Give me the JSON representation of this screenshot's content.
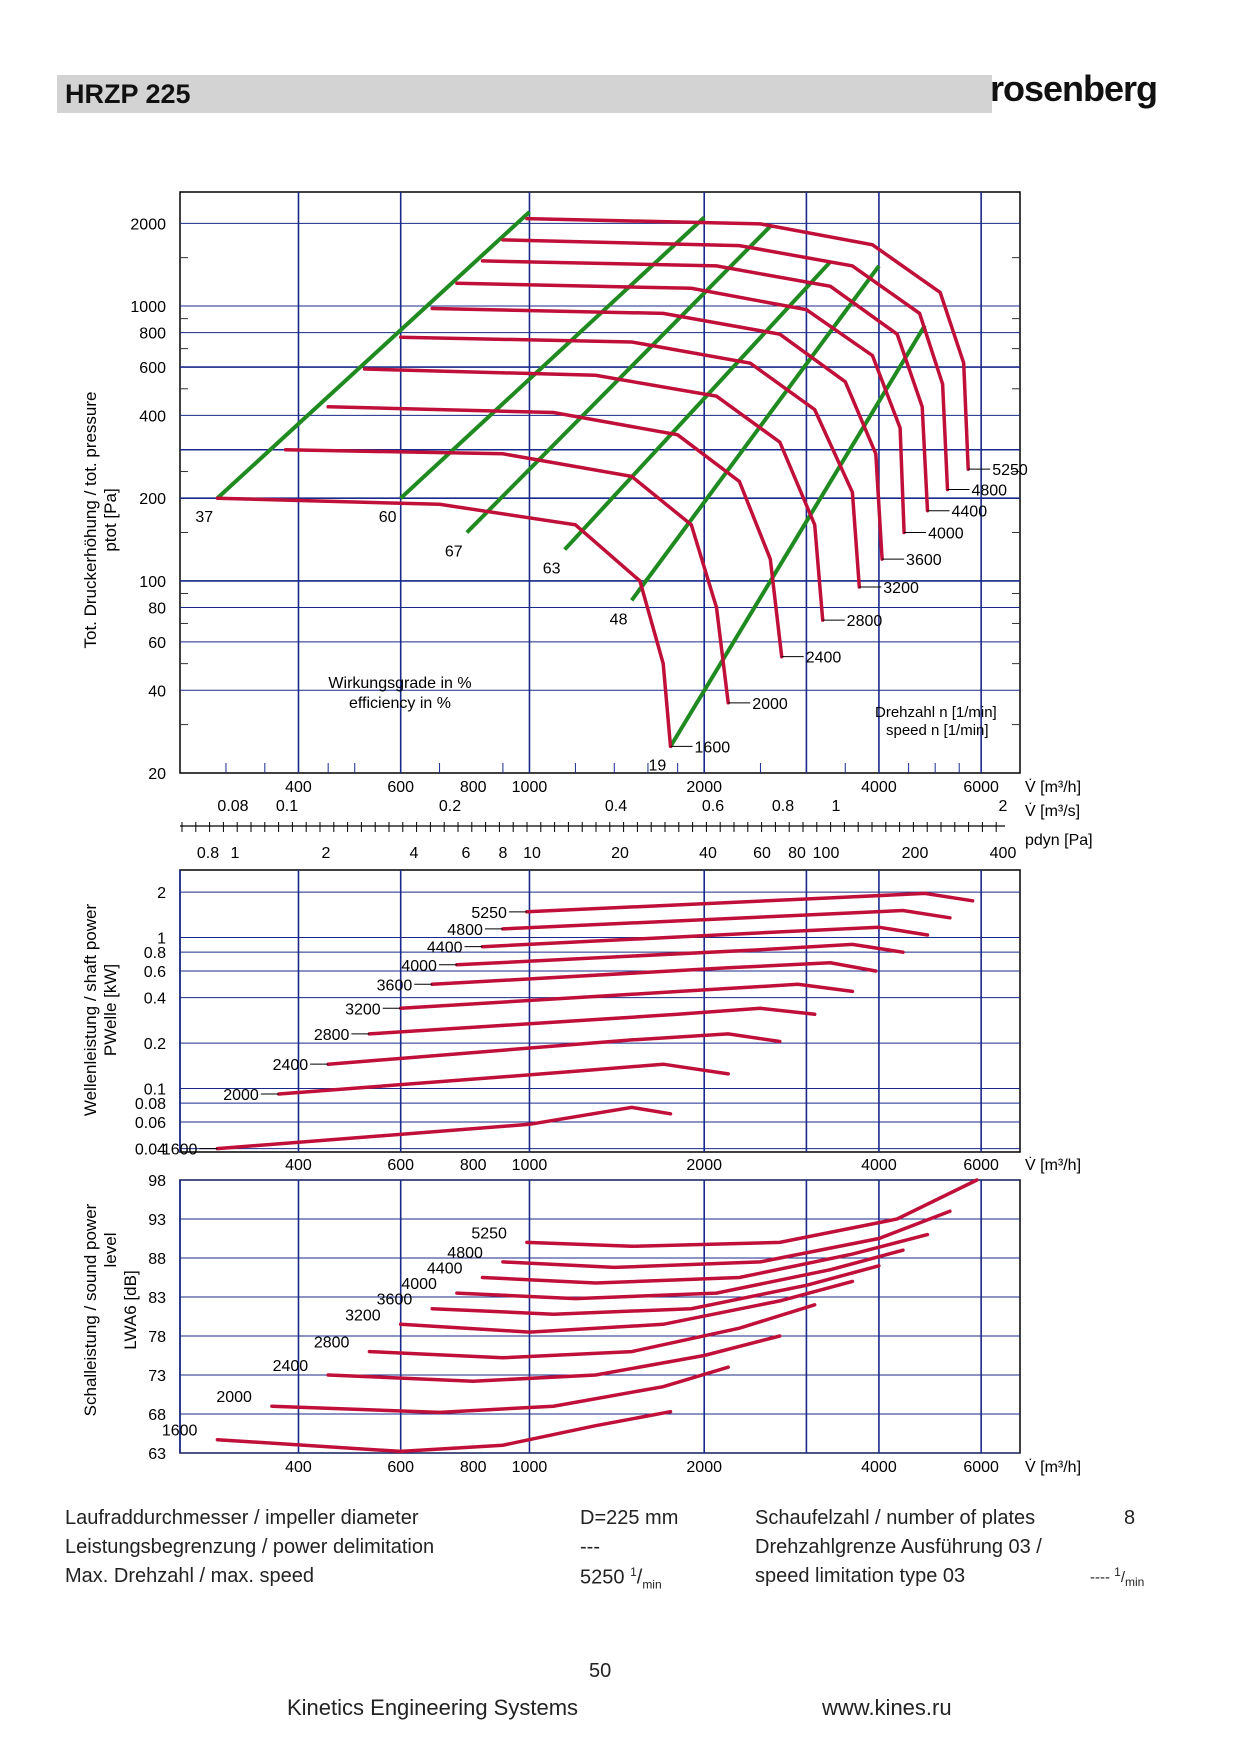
{
  "header": {
    "title": "HRZP 225",
    "brand": "rosenberg"
  },
  "chart_data": [
    {
      "type": "line",
      "name": "pressure",
      "ylabel_1": "Tot. Druckerhöhung / tot. pressure",
      "ylabel_2": "p",
      "ylabel_sub": "tot",
      "ylabel_unit": " [Pa]",
      "xscale": "log",
      "yscale": "log",
      "xlim": [
        250,
        7000
      ],
      "ylim": [
        20,
        2600
      ],
      "y_ticks": [
        2000,
        1000,
        800,
        600,
        400,
        200,
        100,
        80,
        60,
        40,
        20
      ],
      "x_ticks": [
        400,
        600,
        800,
        1000,
        2000,
        4000,
        6000
      ],
      "x2_ticks": [
        "0.08",
        "0.1",
        "0.2",
        "0.4",
        "0.6",
        "0.8",
        "1",
        "2"
      ],
      "x3_ticks": [
        "0.8",
        "1",
        "2",
        "4",
        "6",
        "8",
        "10",
        "20",
        "40",
        "60",
        "80",
        "100",
        "200",
        "400"
      ],
      "xlabel": "V̇ [m³/h]",
      "x2label": "V̇ [m³/s]",
      "x3label": "p",
      "x3label_sub": "dyn",
      "x3label_unit": " [Pa]",
      "efficiency_label_1": "Wirkungsgrade in %",
      "efficiency_label_2": "efficiency in %",
      "speed_label_1": "Drehzahl n [",
      "speed_label_2": "speed n [",
      "speed_unit_num": "1",
      "speed_unit_den": "min",
      "efficiency_lines": [
        {
          "label": "37",
          "points": [
            [
              290,
              200
            ],
            [
              1000,
              2200
            ]
          ]
        },
        {
          "label": "60",
          "points": [
            [
              600,
              200
            ],
            [
              2000,
              2100
            ]
          ]
        },
        {
          "label": "67",
          "points": [
            [
              780,
              150
            ],
            [
              2600,
              1950
            ]
          ]
        },
        {
          "label": "63",
          "points": [
            [
              1150,
              130
            ],
            [
              3300,
              1450
            ]
          ]
        },
        {
          "label": "48",
          "points": [
            [
              1500,
              85
            ],
            [
              4000,
              1400
            ]
          ]
        },
        {
          "label": "19",
          "points": [
            [
              1750,
              25
            ],
            [
              4800,
              850
            ]
          ]
        }
      ],
      "series": [
        {
          "name": "1600",
          "points": [
            [
              290,
              200
            ],
            [
              700,
              190
            ],
            [
              1200,
              160
            ],
            [
              1550,
              100
            ],
            [
              1700,
              50
            ],
            [
              1750,
              25
            ]
          ]
        },
        {
          "name": "2000",
          "points": [
            [
              380,
              300
            ],
            [
              900,
              290
            ],
            [
              1500,
              240
            ],
            [
              1900,
              160
            ],
            [
              2100,
              80
            ],
            [
              2200,
              36
            ]
          ]
        },
        {
          "name": "2400",
          "points": [
            [
              450,
              430
            ],
            [
              1100,
              410
            ],
            [
              1800,
              340
            ],
            [
              2300,
              230
            ],
            [
              2600,
              120
            ],
            [
              2720,
              53
            ]
          ]
        },
        {
          "name": "2800",
          "points": [
            [
              520,
              590
            ],
            [
              1300,
              560
            ],
            [
              2100,
              470
            ],
            [
              2700,
              320
            ],
            [
              3100,
              160
            ],
            [
              3200,
              72
            ]
          ]
        },
        {
          "name": "3200",
          "points": [
            [
              600,
              770
            ],
            [
              1500,
              740
            ],
            [
              2400,
              620
            ],
            [
              3100,
              420
            ],
            [
              3600,
              210
            ],
            [
              3700,
              95
            ]
          ]
        },
        {
          "name": "3600",
          "points": [
            [
              680,
              980
            ],
            [
              1700,
              940
            ],
            [
              2700,
              790
            ],
            [
              3500,
              530
            ],
            [
              3950,
              290
            ],
            [
              4050,
              120
            ]
          ]
        },
        {
          "name": "4000",
          "points": [
            [
              750,
              1210
            ],
            [
              1900,
              1160
            ],
            [
              3000,
              970
            ],
            [
              3900,
              660
            ],
            [
              4350,
              360
            ],
            [
              4420,
              150
            ]
          ]
        },
        {
          "name": "4400",
          "points": [
            [
              830,
              1460
            ],
            [
              2100,
              1400
            ],
            [
              3300,
              1180
            ],
            [
              4300,
              790
            ],
            [
              4750,
              430
            ],
            [
              4850,
              180
            ]
          ]
        },
        {
          "name": "4800",
          "points": [
            [
              900,
              1740
            ],
            [
              2300,
              1660
            ],
            [
              3600,
              1400
            ],
            [
              4700,
              940
            ],
            [
              5150,
              520
            ],
            [
              5250,
              215
            ]
          ]
        },
        {
          "name": "5250",
          "points": [
            [
              990,
              2080
            ],
            [
              2500,
              1990
            ],
            [
              3900,
              1670
            ],
            [
              5100,
              1120
            ],
            [
              5600,
              620
            ],
            [
              5700,
              255
            ]
          ]
        }
      ]
    },
    {
      "type": "line",
      "name": "power",
      "ylabel_1": "Wellenleistung / shaft power",
      "ylabel_2": "P",
      "ylabel_sub": "Welle",
      "ylabel_unit": " [kW]",
      "xscale": "log",
      "yscale": "log",
      "y_ticks": [
        "2",
        "1",
        "0.8",
        "0.6",
        "0.4",
        "0.2",
        "0.1",
        "0.08",
        "0.06",
        "0.04"
      ],
      "x_ticks": [
        400,
        600,
        800,
        1000,
        2000,
        4000,
        6000
      ],
      "xlabel": "V̇ [m³/h]",
      "series": [
        {
          "name": "1600",
          "points": [
            [
              290,
              0.04
            ],
            [
              1000,
              0.058
            ],
            [
              1500,
              0.075
            ],
            [
              1750,
              0.068
            ]
          ]
        },
        {
          "name": "2000",
          "points": [
            [
              370,
              0.092
            ],
            [
              1200,
              0.13
            ],
            [
              1700,
              0.145
            ],
            [
              2200,
              0.125
            ]
          ]
        },
        {
          "name": "2400",
          "points": [
            [
              450,
              0.145
            ],
            [
              1500,
              0.21
            ],
            [
              2200,
              0.23
            ],
            [
              2700,
              0.205
            ]
          ]
        },
        {
          "name": "2800",
          "points": [
            [
              530,
              0.23
            ],
            [
              1800,
              0.31
            ],
            [
              2500,
              0.34
            ],
            [
              3100,
              0.31
            ]
          ]
        },
        {
          "name": "3200",
          "points": [
            [
              600,
              0.34
            ],
            [
              2000,
              0.45
            ],
            [
              2900,
              0.49
            ],
            [
              3600,
              0.44
            ]
          ]
        },
        {
          "name": "3600",
          "points": [
            [
              680,
              0.49
            ],
            [
              2200,
              0.63
            ],
            [
              3300,
              0.68
            ],
            [
              3950,
              0.6
            ]
          ]
        },
        {
          "name": "4000",
          "points": [
            [
              750,
              0.66
            ],
            [
              2500,
              0.83
            ],
            [
              3600,
              0.9
            ],
            [
              4400,
              0.8
            ]
          ]
        },
        {
          "name": "4400",
          "points": [
            [
              830,
              0.87
            ],
            [
              2700,
              1.09
            ],
            [
              4000,
              1.17
            ],
            [
              4850,
              1.04
            ]
          ]
        },
        {
          "name": "4800",
          "points": [
            [
              900,
              1.14
            ],
            [
              3000,
              1.41
            ],
            [
              4400,
              1.51
            ],
            [
              5300,
              1.35
            ]
          ]
        },
        {
          "name": "5250",
          "points": [
            [
              990,
              1.48
            ],
            [
              3300,
              1.83
            ],
            [
              4800,
              1.96
            ],
            [
              5800,
              1.75
            ]
          ]
        }
      ]
    },
    {
      "type": "line",
      "name": "sound",
      "ylabel_1": "Schalleistung / sound power",
      "ylabel_1b": "level",
      "ylabel_2": "L",
      "ylabel_sub": "WA6",
      "ylabel_unit": " [dB]",
      "xscale": "log",
      "y_ticks": [
        "98",
        "93",
        "88",
        "83",
        "78",
        "73",
        "68",
        "63"
      ],
      "x_ticks": [
        400,
        600,
        800,
        1000,
        2000,
        4000,
        6000
      ],
      "xlabel": "V̇ [m³/h]",
      "series": [
        {
          "name": "1600",
          "points": [
            [
              290,
              64.7
            ],
            [
              600,
              63.2
            ],
            [
              900,
              64
            ],
            [
              1300,
              66.5
            ],
            [
              1750,
              68.3
            ]
          ]
        },
        {
          "name": "2000",
          "points": [
            [
              360,
              69
            ],
            [
              700,
              68.2
            ],
            [
              1100,
              69
            ],
            [
              1700,
              71.5
            ],
            [
              2200,
              74
            ]
          ]
        },
        {
          "name": "2400",
          "points": [
            [
              450,
              73
            ],
            [
              800,
              72.2
            ],
            [
              1300,
              73
            ],
            [
              2000,
              75.5
            ],
            [
              2700,
              78
            ]
          ]
        },
        {
          "name": "2800",
          "points": [
            [
              530,
              76
            ],
            [
              900,
              75.2
            ],
            [
              1500,
              76
            ],
            [
              2300,
              79
            ],
            [
              3100,
              82
            ]
          ]
        },
        {
          "name": "3200",
          "points": [
            [
              600,
              79.5
            ],
            [
              1000,
              78.5
            ],
            [
              1700,
              79.5
            ],
            [
              2700,
              82.5
            ],
            [
              3600,
              85
            ]
          ]
        },
        {
          "name": "3600",
          "points": [
            [
              680,
              81.5
            ],
            [
              1100,
              80.8
            ],
            [
              1900,
              81.5
            ],
            [
              3000,
              84.5
            ],
            [
              4000,
              87
            ]
          ]
        },
        {
          "name": "4000",
          "points": [
            [
              750,
              83.5
            ],
            [
              1200,
              82.8
            ],
            [
              2100,
              83.5
            ],
            [
              3300,
              86.5
            ],
            [
              4400,
              89
            ]
          ]
        },
        {
          "name": "4400",
          "points": [
            [
              830,
              85.5
            ],
            [
              1300,
              84.8
            ],
            [
              2300,
              85.5
            ],
            [
              3600,
              88.5
            ],
            [
              4850,
              91
            ]
          ]
        },
        {
          "name": "4800",
          "points": [
            [
              900,
              87.5
            ],
            [
              1400,
              86.8
            ],
            [
              2500,
              87.5
            ],
            [
              4000,
              90.5
            ],
            [
              5300,
              94
            ]
          ]
        },
        {
          "name": "5250",
          "points": [
            [
              990,
              90
            ],
            [
              1500,
              89.5
            ],
            [
              2700,
              90
            ],
            [
              4300,
              93
            ],
            [
              5900,
              98
            ]
          ]
        }
      ]
    }
  ],
  "specs": {
    "r1_label": "Laufraddurchmesser / impeller diameter",
    "r1_value": "D=225 mm",
    "r1_label2": "Schaufelzahl / number of plates",
    "r1_value2": "8",
    "r2_label": "Leistungsbegrenzung / power delimitation",
    "r2_value": "---",
    "r2_label2": "Drehzahlgrenze Ausführung 03 /",
    "r3_label": "Max. Drehzahl / max. speed",
    "r3_value": "5250",
    "r3_unit_num": "1",
    "r3_unit_den": "min",
    "r3_label2": "speed limitation type 03",
    "r3_value2": "----",
    "r3_unit2_num": "1",
    "r3_unit2_den": "min"
  },
  "footer": {
    "page": "50",
    "company": "Kinetics Engineering Systems",
    "url": "www.kines.ru"
  },
  "colors": {
    "curve": "#c0103a",
    "efficiency": "#1f8a1f",
    "grid": "#1a2a8a"
  }
}
